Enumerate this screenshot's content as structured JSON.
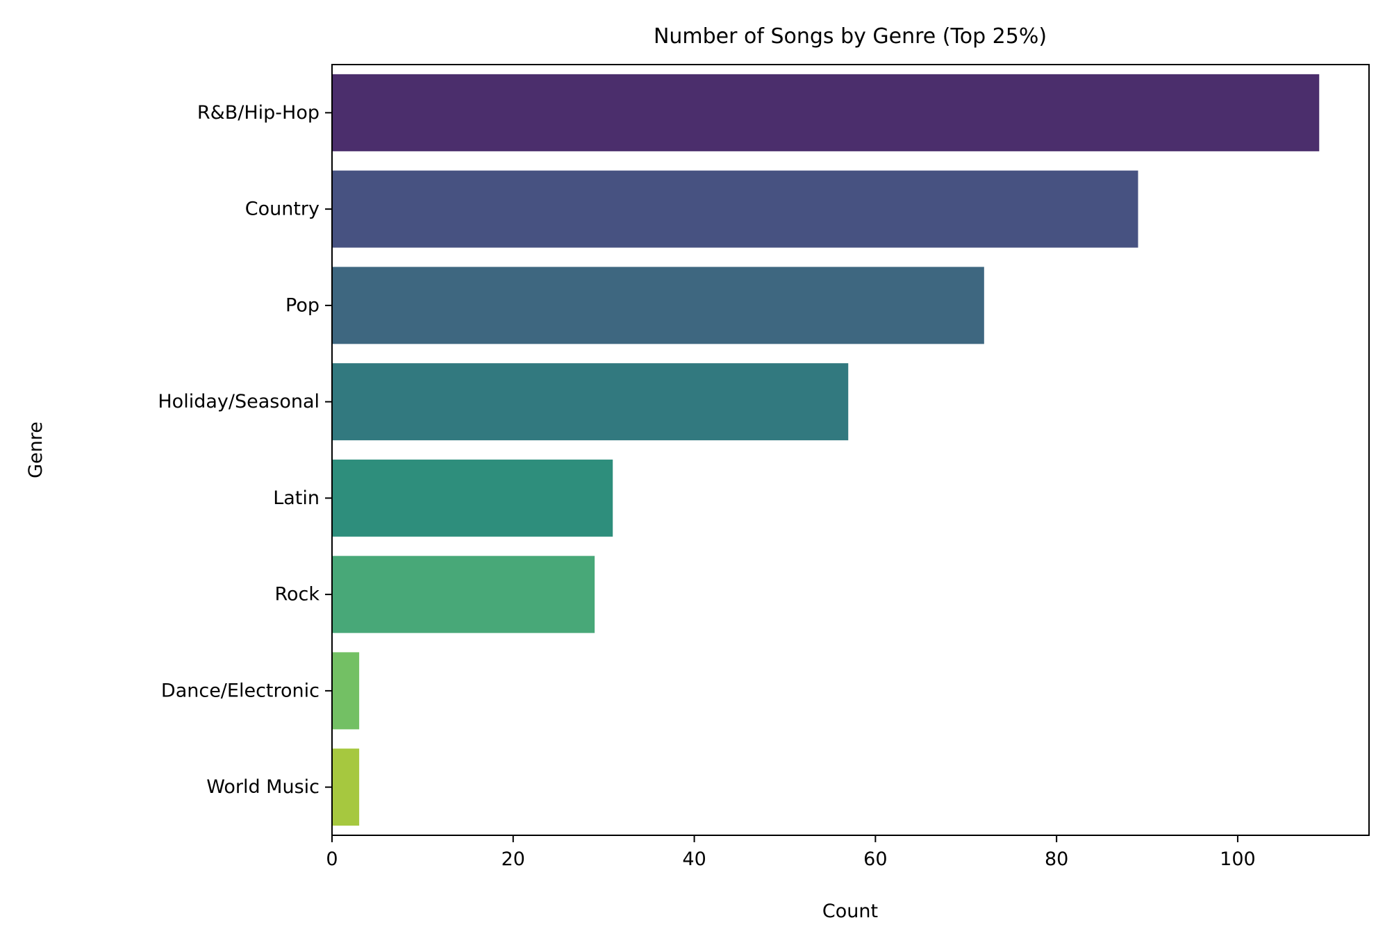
{
  "chart_data": {
    "type": "bar",
    "orientation": "horizontal",
    "title": "Number of Songs by Genre (Top 25%)",
    "xlabel": "Count",
    "ylabel": "Genre",
    "categories": [
      "R&B/Hip-Hop",
      "Country",
      "Pop",
      "Holiday/Seasonal",
      "Latin",
      "Rock",
      "Dance/Electronic",
      "World Music"
    ],
    "values": [
      109,
      89,
      72,
      57,
      31,
      29,
      3,
      3
    ],
    "colors": [
      "#4b2e6c",
      "#475281",
      "#3e6780",
      "#32797f",
      "#2e8e7c",
      "#48a878",
      "#73c064",
      "#a6c83f"
    ],
    "xlim": [
      0,
      114.5
    ],
    "xticks": [
      "0",
      "20",
      "40",
      "60",
      "80",
      "100"
    ],
    "grid": false,
    "legend": "none"
  }
}
